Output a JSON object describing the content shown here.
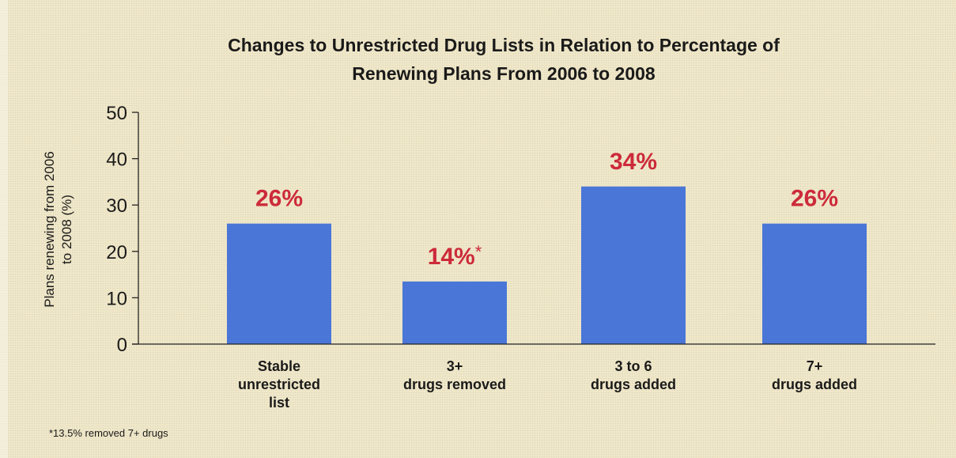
{
  "chart_data": {
    "type": "bar",
    "title": "Changes to Unrestricted Drug Lists in Relation to Percentage of Renewing Plans From 2006 to 2008",
    "title_lines": [
      "Changes to Unrestricted Drug Lists in Relation to Percentage of",
      "Renewing Plans From 2006 to 2008"
    ],
    "ylabel": "Plans renewing from 2006 to 2008 (%)",
    "ylabel_lines": [
      "Plans renewing from 2006",
      "to 2008 (%)"
    ],
    "xlabel": "",
    "ylim": [
      0,
      50
    ],
    "yticks": [
      0,
      10,
      20,
      30,
      40,
      50
    ],
    "categories": [
      "Stable unrestricted list",
      "3+ drugs removed",
      "3 to 6 drugs added",
      "7+ drugs added"
    ],
    "category_lines": [
      [
        "Stable",
        "unrestricted",
        "list"
      ],
      [
        "3+",
        "drugs removed"
      ],
      [
        "3 to 6",
        "drugs added"
      ],
      [
        "7+",
        "drugs added"
      ]
    ],
    "values": [
      26,
      13.5,
      34,
      26
    ],
    "data_labels": [
      {
        "text": "26%",
        "mark": ""
      },
      {
        "text": "14%",
        "mark": "*"
      },
      {
        "text": "34%",
        "mark": ""
      },
      {
        "text": "26%",
        "mark": ""
      }
    ],
    "bar_color": "#4a76d8",
    "label_color": "#cc2a3a",
    "grid": false,
    "legend": "none",
    "footnote": "*13.5% removed 7+ drugs"
  }
}
